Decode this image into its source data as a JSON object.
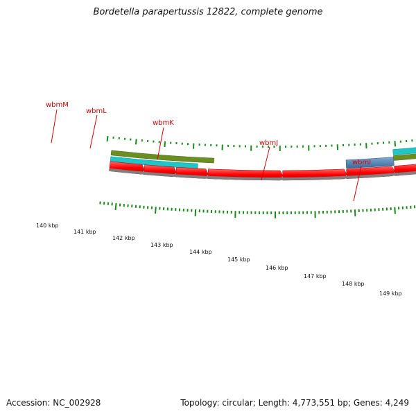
{
  "title": "Bordetella parapertussis 12822, complete genome",
  "footer": {
    "accession": "Accession: NC_002928",
    "summary": "Topology: circular; Length: 4,773,551 bp; Genes: 4,249"
  },
  "colors": {
    "gene_label": "#d40000",
    "cds_forward": "#ff0000",
    "backbone": "#808080",
    "ticks": "#1a8a1a",
    "olive_track": "#6b8e23",
    "cyan_track": "#20c5c5",
    "blue_feature": "#4f7fae"
  },
  "gene_labels": [
    {
      "name": "wbmM"
    },
    {
      "name": "wbmL"
    },
    {
      "name": "wbmK"
    },
    {
      "name": "wbmJ"
    },
    {
      "name": "wbmI"
    }
  ],
  "scale_labels": [
    "140 kbp",
    "141 kbp",
    "142 kbp",
    "143 kbp",
    "144 kbp",
    "145 kbp",
    "146 kbp",
    "147 kbp",
    "148 kbp",
    "149 kbp"
  ]
}
